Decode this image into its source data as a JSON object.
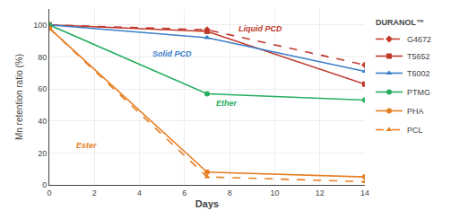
{
  "chart_data": {
    "type": "line",
    "xlabel": "Days",
    "ylabel": "Mn retention ratio (%)",
    "x": [
      0,
      7,
      14
    ],
    "xlim": [
      0,
      14
    ],
    "ylim": [
      0,
      110
    ],
    "xticks": [
      0,
      2,
      4,
      6,
      8,
      10,
      12,
      14
    ],
    "yticks": [
      0,
      20,
      40,
      60,
      80,
      100
    ],
    "grid": true,
    "legend": "right",
    "series": [
      {
        "name": "G4672",
        "group": "DURANOL™",
        "color": "#c0392b",
        "line_style": "dashed",
        "marker": "diamond",
        "values": [
          100,
          97,
          75
        ]
      },
      {
        "name": "T5652",
        "group": "DURANOL™",
        "color": "#c0392b",
        "line_style": "solid",
        "marker": "square",
        "values": [
          100,
          96,
          63
        ]
      },
      {
        "name": "T6002",
        "group": "DURANOL™",
        "color": "#3a7dc9",
        "line_style": "solid",
        "marker": "triangle-up",
        "values": [
          100,
          92,
          71
        ]
      },
      {
        "name": "PTMG",
        "color": "#27ae60",
        "line_style": "solid",
        "marker": "circle",
        "values": [
          100,
          57,
          53
        ]
      },
      {
        "name": "PHA",
        "color": "#e67e22",
        "line_style": "solid",
        "marker": "circle",
        "values": [
          98,
          8,
          5
        ]
      },
      {
        "name": "PCL",
        "color": "#e67e22",
        "line_style": "dashed",
        "marker": "triangle-up",
        "values": [
          98,
          5,
          2
        ]
      }
    ],
    "annotations": [
      {
        "text": "Liquid PCD",
        "x": 8.3,
        "y": 94,
        "color": "#c0392b"
      },
      {
        "text": "Solid PCD",
        "x": 4.5,
        "y": 78,
        "color": "#3a7dc9"
      },
      {
        "text": "Ether",
        "x": 7.3,
        "y": 47,
        "color": "#27ae60"
      },
      {
        "text": "Ester",
        "x": 1.1,
        "y": 21,
        "color": "#e67e22"
      }
    ]
  }
}
